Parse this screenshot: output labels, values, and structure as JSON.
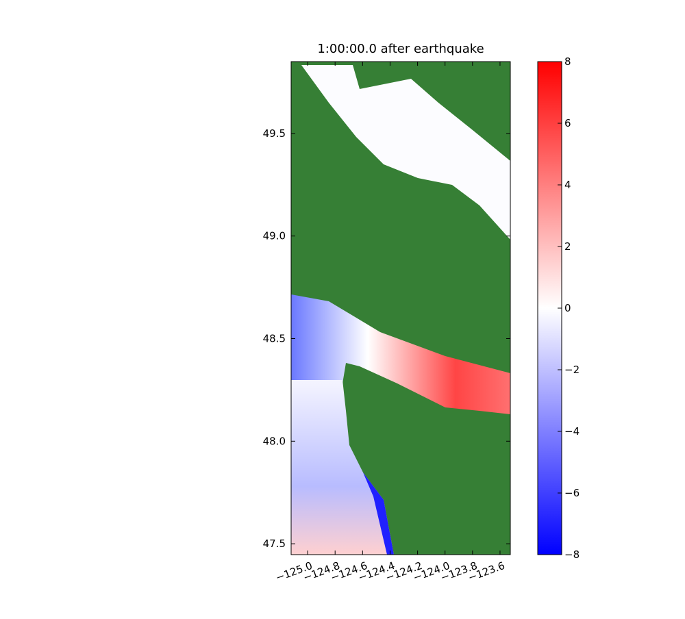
{
  "chart_data": {
    "type": "heatmap-map",
    "title": "1:00:00.0 after earthquake",
    "xlim": [
      -125.12,
      -123.525
    ],
    "xticks": [
      {
        "value": -125.0,
        "label": "−125.0"
      },
      {
        "value": -124.8,
        "label": "−124.8"
      },
      {
        "value": -124.6,
        "label": "−124.6"
      },
      {
        "value": -124.4,
        "label": "−124.4"
      },
      {
        "value": -124.2,
        "label": "−124.2"
      },
      {
        "value": -124.0,
        "label": "−124.0"
      },
      {
        "value": -123.8,
        "label": "−123.8"
      },
      {
        "value": -123.6,
        "label": "−123.6"
      }
    ],
    "ylim": [
      47.447,
      49.85
    ],
    "yticks": [
      47.5,
      {
        "value": 48,
        "label": "48.0"
      },
      48.5,
      {
        "value": 49,
        "label": "49.0"
      },
      49.5
    ],
    "colorbar": {
      "lim": [
        -8,
        8
      ],
      "ticks": [
        {
          "value": -8,
          "label": "−8"
        },
        {
          "value": -6,
          "label": "−6"
        },
        {
          "value": -4,
          "label": "−4"
        },
        {
          "value": -2,
          "label": "−2"
        },
        0,
        2,
        4,
        6,
        8
      ]
    }
  }
}
